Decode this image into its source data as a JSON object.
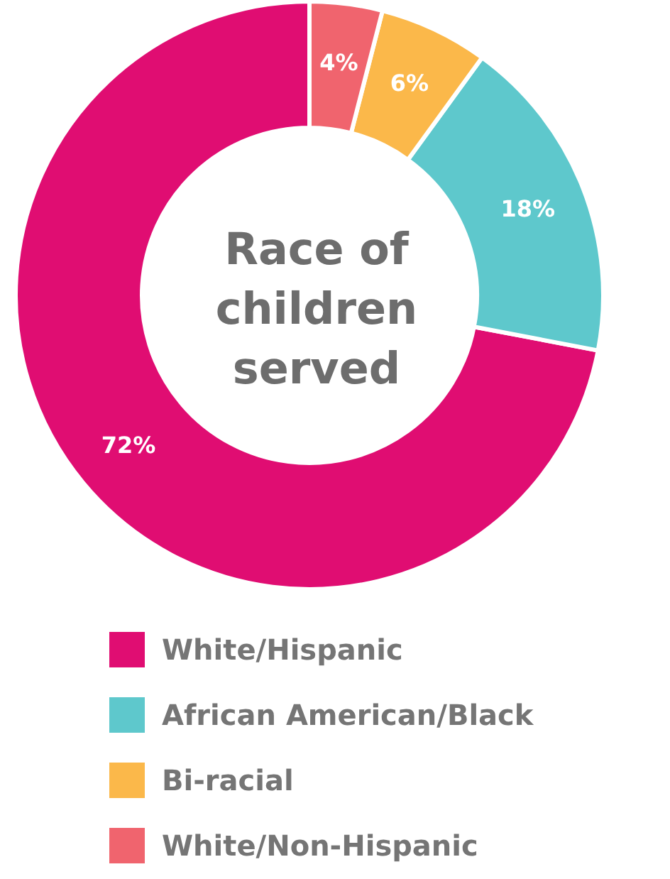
{
  "chart_data": {
    "type": "donut",
    "title": "Race of\nchildren\nserved",
    "categories": [
      "White/Hispanic",
      "African American/Black",
      "Bi-racial",
      "White/Non-Hispanic"
    ],
    "values": [
      72,
      18,
      6,
      4
    ],
    "colors": [
      "#e00d72",
      "#5ec8cc",
      "#fbb84a",
      "#f0646e"
    ],
    "value_labels": [
      "72%",
      "18%",
      "6%",
      "4%"
    ],
    "legend": "bottom"
  }
}
